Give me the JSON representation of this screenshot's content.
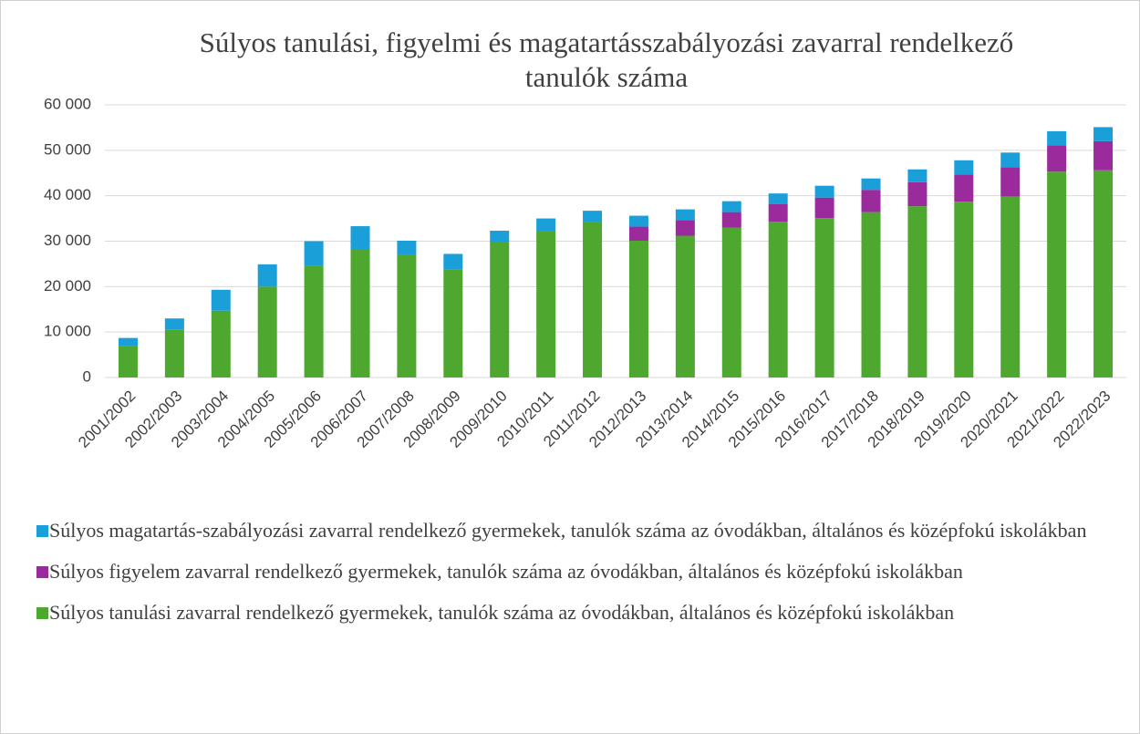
{
  "chart_data": {
    "type": "stacked_bar",
    "title": "Súlyos tanulási, figyelmi és magatartásszabályozási zavarral rendelkező tanulók száma",
    "categories": [
      "2001/2002",
      "2002/2003",
      "2003/2004",
      "2004/2005",
      "2005/2006",
      "2006/2007",
      "2007/2008",
      "2008/2009",
      "2009/2010",
      "2010/2011",
      "2011/2012",
      "2012/2013",
      "2013/2014",
      "2014/2015",
      "2015/2016",
      "2016/2017",
      "2017/2018",
      "2018/2019",
      "2019/2020",
      "2020/2021",
      "2021/2022",
      "2022/2023"
    ],
    "series": [
      {
        "name": "Súlyos tanulási zavarral rendelkező gyermekek, tanulók száma az óvodákban, általános és középfokú iskolákban",
        "color": "#4ea72e",
        "values": [
          7000,
          10600,
          14700,
          20000,
          24600,
          28200,
          27000,
          23800,
          29700,
          32200,
          34200,
          30100,
          31200,
          33000,
          34300,
          35100,
          36400,
          37700,
          38700,
          39800,
          45300,
          45600
        ]
      },
      {
        "name": "Súlyos figyelem zavarral rendelkező gyermekek, tanulók száma az óvodákban, általános és középfokú iskolákban",
        "color": "#9b2b9c",
        "values": [
          0,
          0,
          0,
          0,
          0,
          0,
          0,
          0,
          0,
          0,
          0,
          3100,
          3400,
          3400,
          3900,
          4500,
          4900,
          5300,
          6000,
          6500,
          5800,
          6400
        ]
      },
      {
        "name": "Súlyos magatartás-szabályozási zavarral rendelkező gyermekek, tanulók száma az óvodákban, általános és középfokú iskolákban",
        "color": "#1a9fd8",
        "values": [
          1700,
          2400,
          4600,
          4900,
          5400,
          5100,
          3100,
          3400,
          2600,
          2800,
          2500,
          2400,
          2400,
          2400,
          2300,
          2600,
          2500,
          2800,
          3100,
          3200,
          3100,
          3100
        ]
      }
    ],
    "ylim": [
      0,
      60000
    ],
    "yticks": [
      0,
      {
        "value": 10000,
        "label": "10 000"
      },
      {
        "value": 20000,
        "label": "20 000"
      },
      {
        "value": 30000,
        "label": "30 000"
      },
      {
        "value": 40000,
        "label": "40 000"
      },
      {
        "value": 50000,
        "label": "50 000"
      },
      {
        "value": 60000,
        "label": "60 000"
      }
    ],
    "grid": true,
    "legend": "bottom"
  }
}
